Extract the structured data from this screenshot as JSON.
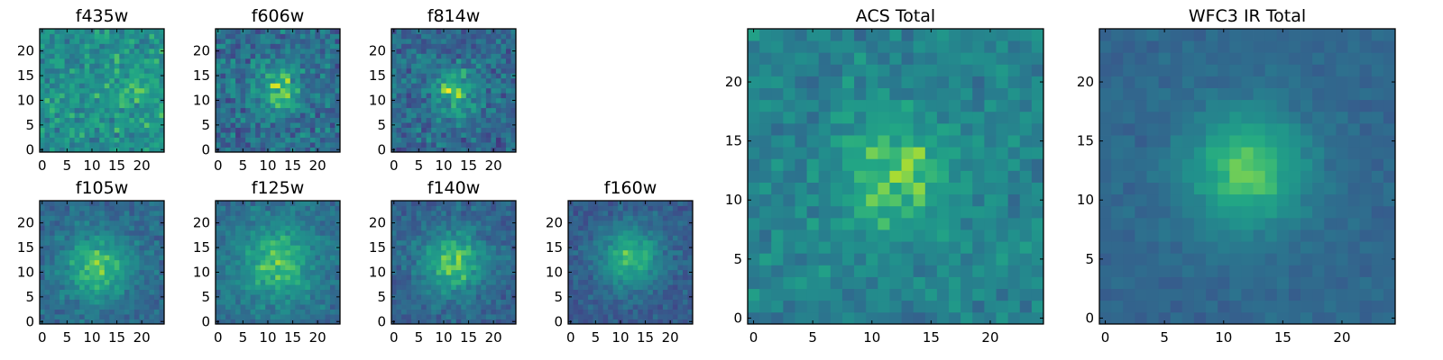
{
  "chart_data": {
    "type": "heatmap",
    "colormap": "viridis",
    "grid": false,
    "colors": {
      "viridis_low": "#440154",
      "viridis_mid": "#21918c",
      "viridis_high": "#fde725"
    },
    "panels": [
      {
        "title": "f435w",
        "grid_size": 25,
        "xlim": [
          -0.5,
          24.5
        ],
        "ylim": [
          -0.5,
          24.5
        ],
        "xticks": [
          0,
          5,
          10,
          15,
          20
        ],
        "yticks": [
          0,
          5,
          10,
          15,
          20
        ],
        "xtick_labels": [
          "0",
          "5",
          "10",
          "15",
          "20"
        ],
        "ytick_labels": [
          "0",
          "5",
          "10",
          "15",
          "20"
        ],
        "source": {
          "center": [
            20,
            11
          ],
          "sigma": 4.0,
          "amplitude": 0.1
        },
        "background": 0.62,
        "noise": 0.22,
        "seed": 11
      },
      {
        "title": "f606w",
        "grid_size": 25,
        "xlim": [
          -0.5,
          24.5
        ],
        "ylim": [
          -0.5,
          24.5
        ],
        "xticks": [
          0,
          5,
          10,
          15,
          20
        ],
        "yticks": [
          0,
          5,
          10,
          15,
          20
        ],
        "xtick_labels": [
          "0",
          "5",
          "10",
          "15",
          "20"
        ],
        "ytick_labels": [
          "0",
          "5",
          "10",
          "15",
          "20"
        ],
        "source": {
          "center": [
            12,
            12
          ],
          "sigma": 3.5,
          "amplitude": 0.35
        },
        "background": 0.45,
        "noise": 0.25,
        "seed": 23
      },
      {
        "title": "f814w",
        "grid_size": 25,
        "xlim": [
          -0.5,
          24.5
        ],
        "ylim": [
          -0.5,
          24.5
        ],
        "xticks": [
          0,
          5,
          10,
          15,
          20
        ],
        "yticks": [
          0,
          5,
          10,
          15,
          20
        ],
        "xtick_labels": [
          "0",
          "5",
          "10",
          "15",
          "20"
        ],
        "ytick_labels": [
          "0",
          "5",
          "10",
          "15",
          "20"
        ],
        "source": {
          "center": [
            12,
            12
          ],
          "sigma": 3.5,
          "amplitude": 0.38
        },
        "background": 0.42,
        "noise": 0.24,
        "seed": 37
      },
      {
        "title": "f105w",
        "grid_size": 25,
        "xlim": [
          -0.5,
          24.5
        ],
        "ylim": [
          -0.5,
          24.5
        ],
        "xticks": [
          0,
          5,
          10,
          15,
          20
        ],
        "yticks": [
          0,
          5,
          10,
          15,
          20
        ],
        "xtick_labels": [
          "0",
          "5",
          "10",
          "15",
          "20"
        ],
        "ytick_labels": [
          "0",
          "5",
          "10",
          "15",
          "20"
        ],
        "source": {
          "center": [
            11,
            11
          ],
          "sigma": 5.0,
          "amplitude": 0.4
        },
        "background": 0.42,
        "noise": 0.14,
        "seed": 41
      },
      {
        "title": "f125w",
        "grid_size": 25,
        "xlim": [
          -0.5,
          24.5
        ],
        "ylim": [
          -0.5,
          24.5
        ],
        "xticks": [
          0,
          5,
          10,
          15,
          20
        ],
        "yticks": [
          0,
          5,
          10,
          15,
          20
        ],
        "xtick_labels": [
          "0",
          "5",
          "10",
          "15",
          "20"
        ],
        "ytick_labels": [
          "0",
          "5",
          "10",
          "15",
          "20"
        ],
        "source": {
          "center": [
            12,
            12
          ],
          "sigma": 5.5,
          "amplitude": 0.38
        },
        "background": 0.45,
        "noise": 0.15,
        "seed": 53
      },
      {
        "title": "f140w",
        "grid_size": 25,
        "xlim": [
          -0.5,
          24.5
        ],
        "ylim": [
          -0.5,
          24.5
        ],
        "xticks": [
          0,
          5,
          10,
          15,
          20
        ],
        "yticks": [
          0,
          5,
          10,
          15,
          20
        ],
        "xtick_labels": [
          "0",
          "5",
          "10",
          "15",
          "20"
        ],
        "ytick_labels": [
          "0",
          "5",
          "10",
          "15",
          "20"
        ],
        "source": {
          "center": [
            12,
            12
          ],
          "sigma": 4.5,
          "amplitude": 0.45
        },
        "background": 0.4,
        "noise": 0.14,
        "seed": 67
      },
      {
        "title": "f160w",
        "grid_size": 25,
        "xlim": [
          -0.5,
          24.5
        ],
        "ylim": [
          -0.5,
          24.5
        ],
        "xticks": [
          0,
          5,
          10,
          15,
          20
        ],
        "yticks": [
          0,
          5,
          10,
          15,
          20
        ],
        "xtick_labels": [
          "0",
          "5",
          "10",
          "15",
          "20"
        ],
        "ytick_labels": [
          "0",
          "5",
          "10",
          "15",
          "20"
        ],
        "source": {
          "center": [
            12,
            13
          ],
          "sigma": 4.5,
          "amplitude": 0.45
        },
        "background": 0.36,
        "noise": 0.13,
        "seed": 79
      },
      {
        "title": "ACS Total",
        "grid_size": 25,
        "xlim": [
          -0.5,
          24.5
        ],
        "ylim": [
          -0.5,
          24.5
        ],
        "xticks": [
          0,
          5,
          10,
          15,
          20
        ],
        "yticks": [
          0,
          5,
          10,
          15,
          20
        ],
        "xtick_labels": [
          "0",
          "5",
          "10",
          "15",
          "20"
        ],
        "ytick_labels": [
          "0",
          "5",
          "10",
          "15",
          "20"
        ],
        "source": {
          "center": [
            12,
            12
          ],
          "sigma": 3.5,
          "amplitude": 0.3
        },
        "background": 0.55,
        "noise": 0.16,
        "seed": 97
      },
      {
        "title": "WFC3 IR Total",
        "grid_size": 25,
        "xlim": [
          -0.5,
          24.5
        ],
        "ylim": [
          -0.5,
          24.5
        ],
        "xticks": [
          0,
          5,
          10,
          15,
          20
        ],
        "yticks": [
          0,
          5,
          10,
          15,
          20
        ],
        "xtick_labels": [
          "0",
          "5",
          "10",
          "15",
          "20"
        ],
        "ytick_labels": [
          "0",
          "5",
          "10",
          "15",
          "20"
        ],
        "source": {
          "center": [
            12,
            12.5
          ],
          "sigma": 3.5,
          "amplitude": 0.45
        },
        "background": 0.42,
        "noise": 0.07,
        "seed": 113
      }
    ]
  }
}
